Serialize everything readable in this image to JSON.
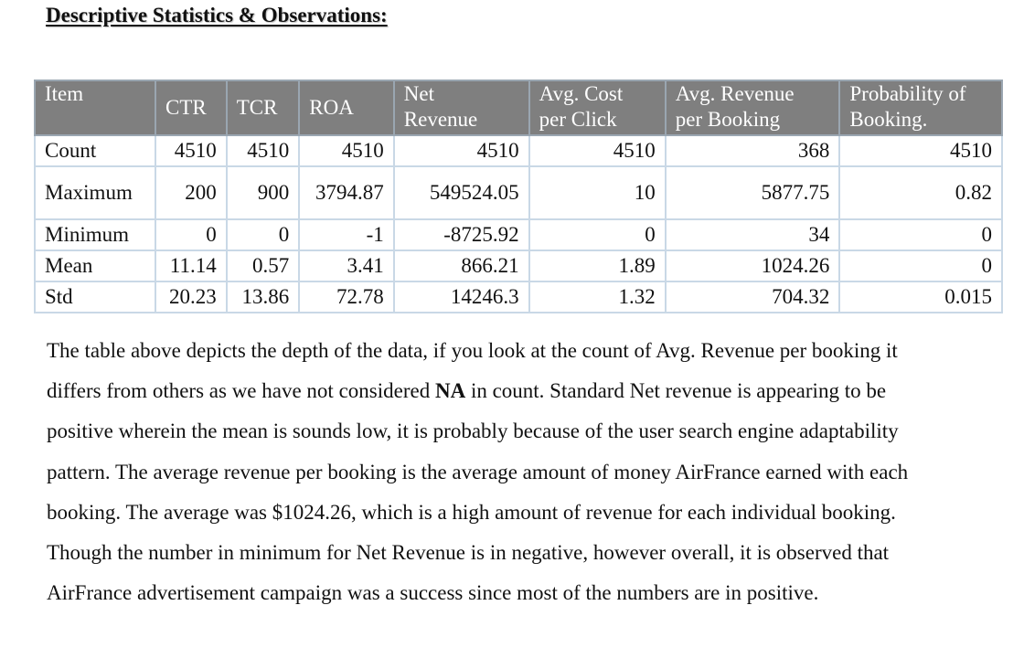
{
  "heading": "Descriptive Statistics & Observations:",
  "table": {
    "headers": [
      "Item",
      "CTR",
      "TCR",
      "ROA",
      "Net Revenue",
      "Avg. Cost per Click",
      "Avg. Revenue per Booking",
      "Probability of Booking."
    ],
    "rows": [
      {
        "label": "Count",
        "cells": [
          "4510",
          "4510",
          "4510",
          "4510",
          "4510",
          "368",
          "4510"
        ]
      },
      {
        "label": "Maximum",
        "cells": [
          "200",
          "900",
          "3794.87",
          "549524.05",
          "10",
          "5877.75",
          "0.82"
        ]
      },
      {
        "label": "Minimum",
        "cells": [
          "0",
          "0",
          "-1",
          "-8725.92",
          "0",
          "34",
          "0"
        ]
      },
      {
        "label": "Mean",
        "cells": [
          "11.14",
          "0.57",
          "3.41",
          "866.21",
          "1.89",
          "1024.26",
          "0"
        ]
      },
      {
        "label": "Std",
        "cells": [
          "20.23",
          "13.86",
          "72.78",
          "14246.3",
          "1.32",
          "704.32",
          "0.015"
        ]
      }
    ]
  },
  "paragraph": {
    "part1": "The table above depicts the depth of the data, if you look at the count of Avg. Revenue per booking it differs from others as we have not considered ",
    "bold": "NA",
    "part2": " in count. Standard Net revenue is appearing to be positive wherein the mean is sounds low, it is probably because of the user search engine adaptability pattern. The average revenue per booking is the average amount of money AirFrance earned with each booking. The average was $1024.26, which is a high amount of revenue for each individual booking. Though the number in minimum for Net Revenue is in negative, however overall, it is observed that AirFrance advertisement campaign was a success since most of the numbers are in positive."
  },
  "colors": {
    "header_bg": "#7f7f7f",
    "header_text": "#ffffff",
    "grid": "#c9d8e6"
  }
}
